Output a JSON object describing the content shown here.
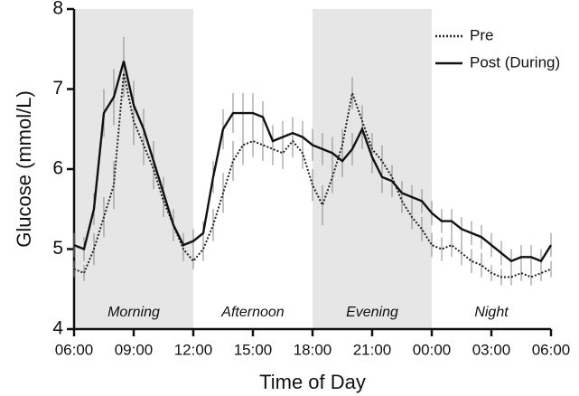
{
  "chart_data": {
    "type": "line",
    "xlabel": "Time of Day",
    "ylabel": "Glucose (mmol/L)",
    "x": [
      6,
      6.5,
      7,
      7.5,
      8,
      8.5,
      9,
      9.5,
      10,
      10.5,
      11,
      11.5,
      12,
      12.5,
      13,
      13.5,
      14,
      14.5,
      15,
      15.5,
      16,
      16.5,
      17,
      17.5,
      18,
      18.5,
      19,
      19.5,
      20,
      20.5,
      21,
      21.5,
      22,
      22.5,
      23,
      23.5,
      24,
      24.5,
      25,
      25.5,
      26,
      26.5,
      27,
      27.5,
      28,
      28.5,
      29,
      29.5,
      30
    ],
    "series": [
      {
        "name": "Pre",
        "color": "#222222",
        "dash": "dotted",
        "values": [
          4.75,
          4.7,
          5.0,
          5.4,
          5.8,
          7.2,
          6.6,
          6.3,
          6.0,
          5.6,
          5.3,
          5.0,
          4.85,
          5.0,
          5.3,
          5.7,
          6.1,
          6.3,
          6.35,
          6.3,
          6.25,
          6.2,
          6.35,
          6.2,
          5.8,
          5.55,
          5.9,
          6.3,
          6.95,
          6.6,
          6.25,
          6.1,
          5.9,
          5.6,
          5.4,
          5.25,
          5.05,
          5.0,
          5.05,
          4.95,
          4.85,
          4.8,
          4.7,
          4.65,
          4.65,
          4.7,
          4.65,
          4.7,
          4.75
        ],
        "errors": [
          0.1,
          0.1,
          0.2,
          0.25,
          0.3,
          0.3,
          0.3,
          0.25,
          0.25,
          0.2,
          0.2,
          0.15,
          0.1,
          0.15,
          0.2,
          0.25,
          0.25,
          0.25,
          0.2,
          0.2,
          0.2,
          0.2,
          0.2,
          0.2,
          0.2,
          0.25,
          0.2,
          0.2,
          0.2,
          0.2,
          0.2,
          0.2,
          0.15,
          0.15,
          0.15,
          0.15,
          0.15,
          0.15,
          0.15,
          0.15,
          0.15,
          0.15,
          0.1,
          0.1,
          0.1,
          0.1,
          0.1,
          0.1,
          0.1
        ]
      },
      {
        "name": "Post (During)",
        "color": "#111111",
        "dash": "solid",
        "values": [
          5.05,
          5.0,
          5.5,
          6.7,
          6.9,
          7.35,
          6.8,
          6.5,
          6.1,
          5.7,
          5.3,
          5.05,
          5.1,
          5.2,
          5.9,
          6.5,
          6.7,
          6.7,
          6.7,
          6.65,
          6.35,
          6.4,
          6.45,
          6.4,
          6.3,
          6.25,
          6.2,
          6.1,
          6.25,
          6.5,
          6.15,
          5.9,
          5.85,
          5.7,
          5.65,
          5.6,
          5.45,
          5.35,
          5.35,
          5.25,
          5.2,
          5.15,
          5.05,
          4.95,
          4.85,
          4.9,
          4.9,
          4.85,
          5.05
        ],
        "errors": [
          0.15,
          0.15,
          0.2,
          0.3,
          0.35,
          0.3,
          0.3,
          0.25,
          0.25,
          0.2,
          0.2,
          0.15,
          0.15,
          0.15,
          0.2,
          0.25,
          0.25,
          0.25,
          0.25,
          0.2,
          0.2,
          0.2,
          0.2,
          0.2,
          0.2,
          0.2,
          0.2,
          0.2,
          0.2,
          0.25,
          0.2,
          0.2,
          0.2,
          0.15,
          0.15,
          0.15,
          0.15,
          0.15,
          0.15,
          0.15,
          0.15,
          0.15,
          0.15,
          0.15,
          0.15,
          0.15,
          0.15,
          0.15,
          0.15
        ]
      }
    ],
    "periods": [
      {
        "label": "Morning",
        "start": 6,
        "end": 12,
        "shaded": true
      },
      {
        "label": "Afternoon",
        "start": 12,
        "end": 18,
        "shaded": false
      },
      {
        "label": "Evening",
        "start": 18,
        "end": 24,
        "shaded": true
      },
      {
        "label": "Night",
        "start": 24,
        "end": 30,
        "shaded": false
      }
    ],
    "shade_color": "#e6e6e6",
    "xlim": [
      6,
      30
    ],
    "xticks": [
      {
        "value": 6,
        "label": "06:00"
      },
      {
        "value": 9,
        "label": "09:00"
      },
      {
        "value": 12,
        "label": "12:00"
      },
      {
        "value": 15,
        "label": "15:00"
      },
      {
        "value": 18,
        "label": "18:00"
      },
      {
        "value": 21,
        "label": "21:00"
      },
      {
        "value": 24,
        "label": "00:00"
      },
      {
        "value": 27,
        "label": "03:00"
      },
      {
        "value": 30,
        "label": "06:00"
      }
    ],
    "ylim": [
      4,
      8
    ],
    "yticks": [
      4,
      5,
      6,
      7,
      8
    ],
    "legend": "top right"
  }
}
